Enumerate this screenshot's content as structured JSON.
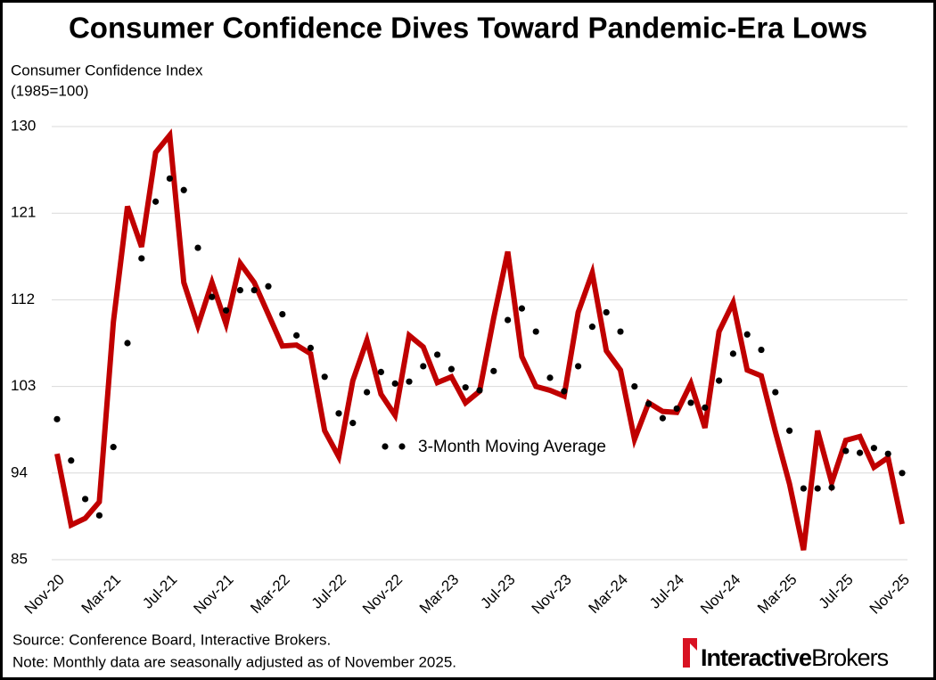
{
  "chart_data": {
    "type": "line",
    "title": "Consumer Confidence Dives Toward Pandemic-Era Lows",
    "y_label": [
      "Consumer Confidence Index",
      "(1985=100)"
    ],
    "categories": [
      "Nov-20",
      null,
      null,
      null,
      "Mar-21",
      null,
      null,
      null,
      "Jul-21",
      null,
      null,
      null,
      "Nov-21",
      null,
      null,
      null,
      "Mar-22",
      null,
      null,
      null,
      "Jul-22",
      null,
      null,
      null,
      "Nov-22",
      null,
      null,
      null,
      "Mar-23",
      null,
      null,
      null,
      "Jul-23",
      null,
      null,
      null,
      "Nov-23",
      null,
      null,
      null,
      "Mar-24",
      null,
      null,
      null,
      "Jul-24",
      null,
      null,
      null,
      "Nov-24",
      null,
      null,
      null,
      "Mar-25",
      null,
      null,
      null,
      "Jul-25",
      null,
      null,
      null,
      "Nov-25"
    ],
    "series": [
      {
        "color": "#c00000",
        "style": "solid",
        "values": [
          96.0,
          88.6,
          89.3,
          91.0,
          109.7,
          121.7,
          117.5,
          127.3,
          129.1,
          113.8,
          109.3,
          113.8,
          109.5,
          115.8,
          113.8,
          110.5,
          107.2,
          107.3,
          106.4,
          98.4,
          95.7,
          103.6,
          107.8,
          102.2,
          100.0,
          108.3,
          107.1,
          103.4,
          104.0,
          101.3,
          102.5,
          110.1,
          117.0,
          106.1,
          103.0,
          102.6,
          102.0,
          110.7,
          114.8,
          106.7,
          104.7,
          97.5,
          101.3,
          100.4,
          100.3,
          103.3,
          98.7,
          108.7,
          111.7,
          104.7,
          104.1,
          98.3,
          92.9,
          86.0,
          98.4,
          93.0,
          97.4,
          97.8,
          94.6,
          95.6,
          88.7
        ]
      },
      {
        "name": "3-Month Moving Average",
        "color": "#000000",
        "style": "dotted",
        "values": [
          99.6,
          95.3,
          91.3,
          89.6,
          96.7,
          107.5,
          116.3,
          122.2,
          124.6,
          123.4,
          117.4,
          112.3,
          110.9,
          113.0,
          113.0,
          113.4,
          110.5,
          108.3,
          107.0,
          104.0,
          100.2,
          99.2,
          102.4,
          104.5,
          103.3,
          103.5,
          105.1,
          106.3,
          104.8,
          102.9,
          102.6,
          104.6,
          109.9,
          111.1,
          108.7,
          103.9,
          102.5,
          105.1,
          109.2,
          110.7,
          108.7,
          103.0,
          101.2,
          99.7,
          100.7,
          101.3,
          100.8,
          103.6,
          106.4,
          108.4,
          106.8,
          102.4,
          98.4,
          92.4,
          92.4,
          92.5,
          96.3,
          96.1,
          96.6,
          96.0,
          94.0
        ]
      }
    ],
    "ylim": [
      85,
      130
    ],
    "yticks": [
      85,
      94,
      103,
      112,
      121,
      130
    ],
    "grid": true,
    "source": "Source: Conference Board, Interactive Brokers.",
    "note": "Note: Monthly data are seasonally adjusted as of November 2025.",
    "logo": {
      "bold": "Interactive",
      "regular": "Brokers"
    }
  }
}
